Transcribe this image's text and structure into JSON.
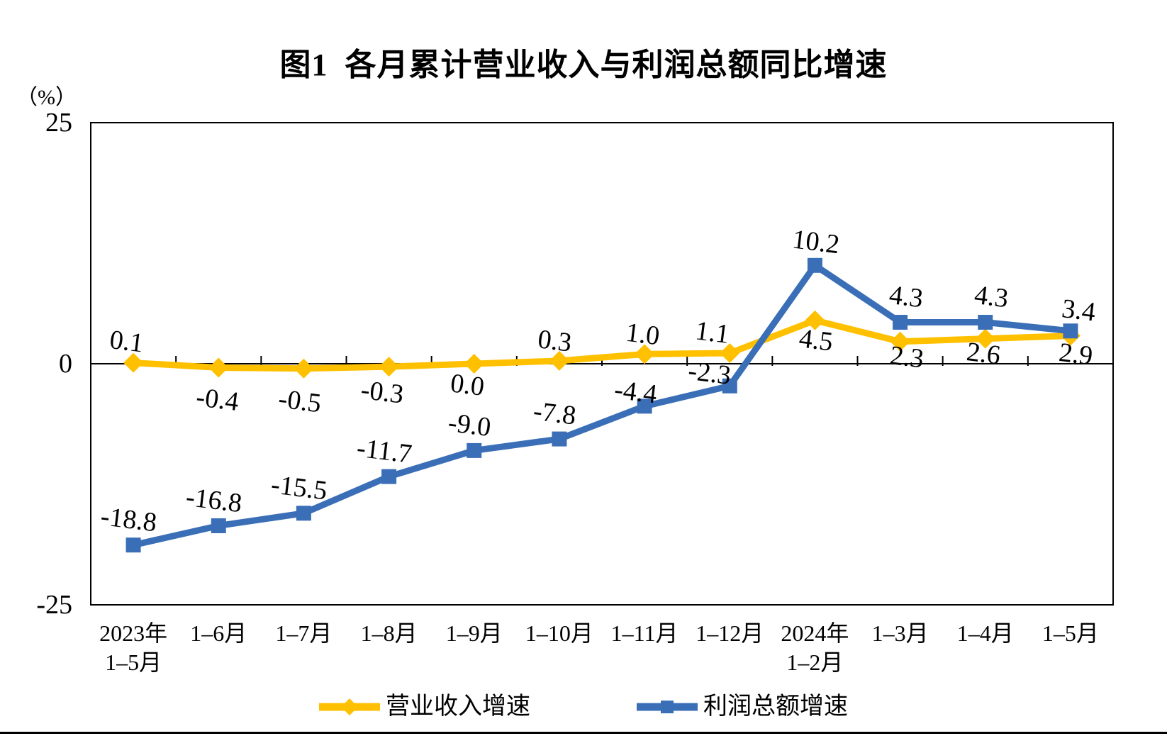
{
  "chart_data": {
    "type": "line",
    "title": "图1  各月累计营业收入与利润总额同比增速",
    "categories": [
      "2023年\n1–5月",
      "1–6月",
      "1–7月",
      "1–8月",
      "1–9月",
      "1–10月",
      "1–11月",
      "1–12月",
      "2024年\n1–2月",
      "1–3月",
      "1–4月",
      "1–5月"
    ],
    "y_axis": {
      "unit": "（%）",
      "ticks": [
        25,
        0,
        -25
      ],
      "min": -25,
      "max": 25
    },
    "grid": false,
    "legend_position": "bottom",
    "series": [
      {
        "name": "营业收入增速",
        "color": "#FFC000",
        "marker": "diamond",
        "values": [
          0.1,
          -0.4,
          -0.5,
          -0.3,
          0.0,
          0.3,
          1.0,
          1.1,
          4.5,
          2.3,
          2.6,
          2.9
        ],
        "label_side": [
          "above",
          "below",
          "below",
          "below",
          "below",
          "above",
          "above",
          "above",
          "below",
          "below",
          "below",
          "below"
        ],
        "label_dx": [
          -11,
          -3,
          -7,
          -11,
          -11,
          -8,
          -4,
          -26,
          0,
          8,
          -4,
          6
        ],
        "label_dy": [
          -18,
          57,
          58,
          48,
          42,
          -16,
          -16,
          -17,
          40,
          34,
          33,
          38
        ]
      },
      {
        "name": "利润总额增速",
        "color": "#3A6FB7",
        "marker": "square",
        "values": [
          -18.8,
          -16.8,
          -15.5,
          -11.7,
          -9.0,
          -7.8,
          -4.4,
          -2.3,
          10.2,
          4.3,
          4.3,
          3.4
        ],
        "label_side": [
          "above",
          "above",
          "above",
          "above",
          "above",
          "above",
          "above",
          "above",
          "above",
          "above",
          "above",
          "above"
        ],
        "label_dx": [
          -8,
          -8,
          -8,
          -8,
          -8,
          -8,
          -14,
          -30,
          0,
          7,
          7,
          10
        ],
        "label_dy": [
          -24,
          -24,
          -24,
          -24,
          -24,
          -24,
          -8,
          -6,
          -21,
          -24,
          -24,
          -17
        ]
      }
    ]
  }
}
